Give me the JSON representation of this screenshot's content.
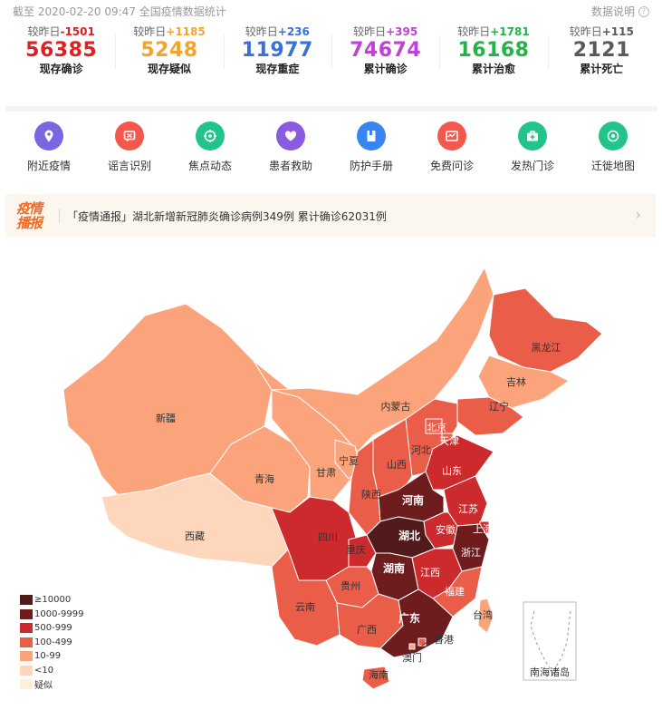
{
  "header": {
    "timestamp": "截至 2020-02-20 09:47 全国疫情数据统计",
    "help_label": "数据说明",
    "help_icon": "question-circle-icon"
  },
  "stats": [
    {
      "delta_label": "较昨日",
      "delta": "-1501",
      "value": "56385",
      "label": "现存确诊",
      "color": "#e02020"
    },
    {
      "delta_label": "较昨日",
      "delta": "+1185",
      "value": "5248",
      "label": "现存疑似",
      "color": "#f5a32b"
    },
    {
      "delta_label": "较昨日",
      "delta": "+236",
      "value": "11977",
      "label": "现存重症",
      "color": "#3a6fdc"
    },
    {
      "delta_label": "较昨日",
      "delta": "+395",
      "value": "74674",
      "label": "累计确诊",
      "color": "#c040d8"
    },
    {
      "delta_label": "较昨日",
      "delta": "+1781",
      "value": "16168",
      "label": "累计治愈",
      "color": "#24b34a"
    },
    {
      "delta_label": "较昨日",
      "delta": "+115",
      "value": "2121",
      "label": "累计死亡",
      "color": "#5a5a5a"
    }
  ],
  "tools": [
    {
      "label": "附近疫情",
      "icon": "location-pin-icon",
      "color": "#7a66e0"
    },
    {
      "label": "谣言识别",
      "icon": "rumor-icon",
      "color": "#f4584c"
    },
    {
      "label": "焦点动态",
      "icon": "focus-icon",
      "color": "#22c48a"
    },
    {
      "label": "患者救助",
      "icon": "heart-icon",
      "color": "#8a5ae0"
    },
    {
      "label": "防护手册",
      "icon": "handbook-icon",
      "color": "#3a86f0"
    },
    {
      "label": "免费问诊",
      "icon": "consult-icon",
      "color": "#f4584c"
    },
    {
      "label": "发热门诊",
      "icon": "medical-kit-icon",
      "color": "#22c48a"
    },
    {
      "label": "迁徙地图",
      "icon": "migration-icon",
      "color": "#22c48a"
    }
  ],
  "notice": {
    "badge": "疫情播报",
    "text": "「疫情通报」湖北新增新冠肺炎确诊病例349例 累计确诊62031例",
    "chevron_icon": "chevron-right-icon"
  },
  "map": {
    "inset_label": "南海诸岛",
    "colors": {
      "c1": "#521b1b",
      "c2": "#6e1c1e",
      "c3": "#cc2a2c",
      "c4": "#ea5d49",
      "c5": "#fba47b",
      "c6": "#fdd6bb",
      "c7": "#fff0dc"
    },
    "provinces": [
      {
        "name": "新疆",
        "tier": "c5"
      },
      {
        "name": "西藏",
        "tier": "c6"
      },
      {
        "name": "青海",
        "tier": "c5"
      },
      {
        "name": "甘肃",
        "tier": "c5"
      },
      {
        "name": "内蒙古",
        "tier": "c5"
      },
      {
        "name": "宁夏",
        "tier": "c5"
      },
      {
        "name": "黑龙江",
        "tier": "c4"
      },
      {
        "name": "吉林",
        "tier": "c5"
      },
      {
        "name": "辽宁",
        "tier": "c4"
      },
      {
        "name": "北京",
        "tier": "c4"
      },
      {
        "name": "天津",
        "tier": "c4"
      },
      {
        "name": "河北",
        "tier": "c4"
      },
      {
        "name": "山西",
        "tier": "c4"
      },
      {
        "name": "山东",
        "tier": "c3"
      },
      {
        "name": "陕西",
        "tier": "c4"
      },
      {
        "name": "河南",
        "tier": "c2"
      },
      {
        "name": "江苏",
        "tier": "c3"
      },
      {
        "name": "安徽",
        "tier": "c3"
      },
      {
        "name": "上海",
        "tier": "c3"
      },
      {
        "name": "四川",
        "tier": "c3"
      },
      {
        "name": "重庆",
        "tier": "c3"
      },
      {
        "name": "湖北",
        "tier": "c1"
      },
      {
        "name": "浙江",
        "tier": "c2"
      },
      {
        "name": "湖南",
        "tier": "c2"
      },
      {
        "name": "江西",
        "tier": "c3"
      },
      {
        "name": "贵州",
        "tier": "c4"
      },
      {
        "name": "云南",
        "tier": "c4"
      },
      {
        "name": "福建",
        "tier": "c4"
      },
      {
        "name": "广西",
        "tier": "c4"
      },
      {
        "name": "广东",
        "tier": "c2"
      },
      {
        "name": "台湾",
        "tier": "c5"
      },
      {
        "name": "香港",
        "tier": "c4"
      },
      {
        "name": "澳门",
        "tier": "c5"
      },
      {
        "name": "海南",
        "tier": "c4"
      }
    ]
  },
  "legend": [
    {
      "label": "≥10000",
      "tier": "c1"
    },
    {
      "label": "1000-9999",
      "tier": "c2"
    },
    {
      "label": "500-999",
      "tier": "c3"
    },
    {
      "label": "100-499",
      "tier": "c4"
    },
    {
      "label": "10-99",
      "tier": "c5"
    },
    {
      "label": "<10",
      "tier": "c6"
    },
    {
      "label": "疑似",
      "tier": "c7"
    }
  ]
}
